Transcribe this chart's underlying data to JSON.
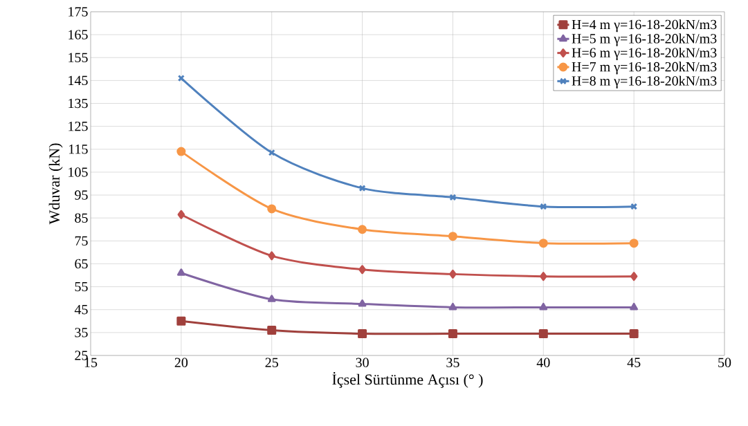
{
  "chart_data": {
    "type": "line",
    "xlabel": "İçsel Sürtünme Açısı (° )",
    "ylabel": "Wduvar (kN)",
    "x": [
      20,
      25,
      30,
      35,
      40,
      45
    ],
    "series": [
      {
        "name": "H=4 m γ=16-18-20kN/m3",
        "color": "#a0403c",
        "marker": "square",
        "values": [
          40,
          36,
          34.5,
          34.5,
          34.5,
          34.5
        ]
      },
      {
        "name": "H=5 m γ=16-18-20kN/m3",
        "color": "#8064a2",
        "marker": "triangle",
        "values": [
          61,
          49.5,
          47.5,
          46,
          46,
          46
        ]
      },
      {
        "name": "H=6 m γ=16-18-20kN/m3",
        "color": "#c0504d",
        "marker": "diamond",
        "values": [
          86.5,
          68.5,
          62.5,
          60.5,
          59.5,
          59.5
        ]
      },
      {
        "name": "H=7 m γ=16-18-20kN/m3",
        "color": "#f79646",
        "marker": "circle",
        "values": [
          114,
          89,
          80,
          77,
          74,
          74
        ]
      },
      {
        "name": "H=8 m γ=16-18-20kN/m3",
        "color": "#4f81bd",
        "marker": "cross",
        "values": [
          146,
          113.5,
          98,
          94,
          90,
          90
        ]
      }
    ],
    "xlim": [
      15,
      50
    ],
    "ylim": [
      25,
      175
    ],
    "xticks": [
      15,
      20,
      25,
      30,
      35,
      40,
      45,
      50
    ],
    "yticks": [
      25,
      35,
      45,
      55,
      65,
      75,
      85,
      95,
      105,
      115,
      125,
      135,
      145,
      155,
      165,
      175
    ],
    "grid": true,
    "legend": "top right",
    "line_style": "solid"
  }
}
